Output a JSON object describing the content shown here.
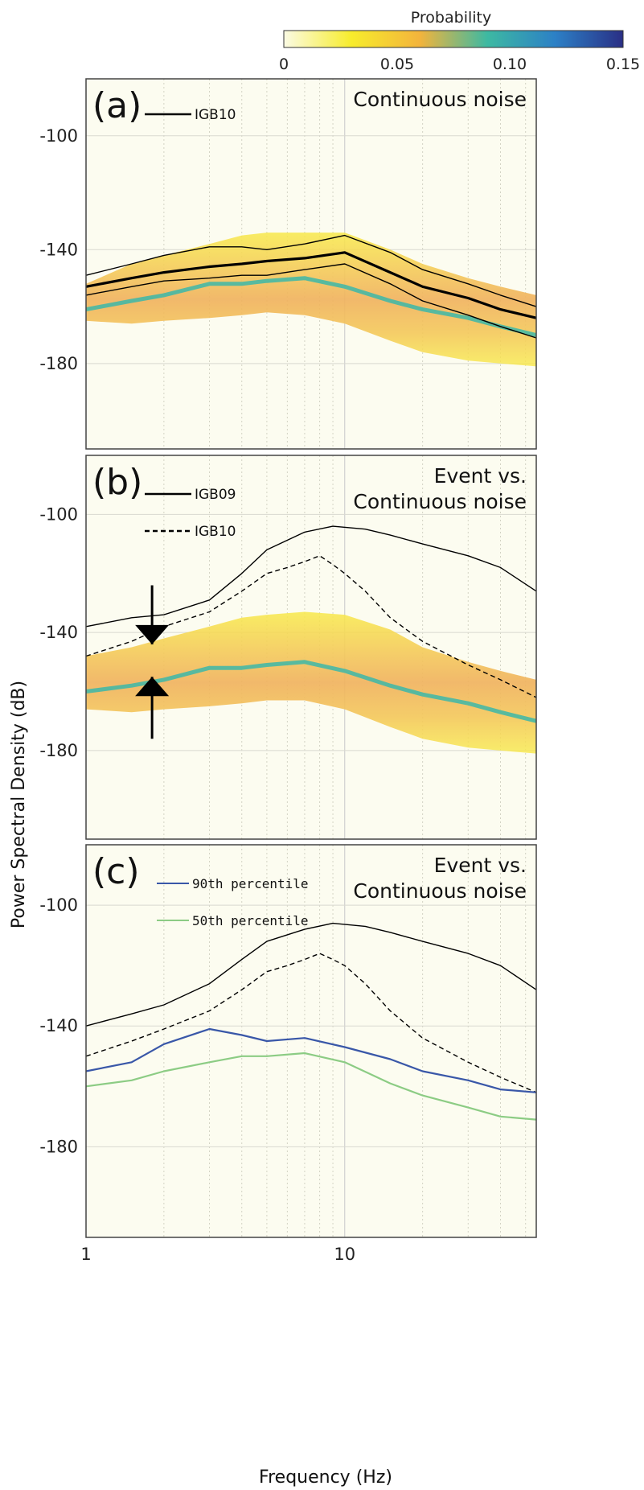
{
  "colorbar": {
    "title": "Probability",
    "ticks": [
      "0",
      "0.05",
      "0.10",
      "0.15"
    ],
    "range": [
      0,
      0.15
    ],
    "colors": [
      "#fbfbe4",
      "#f7ec2c",
      "#f3b43c",
      "#3db9a2",
      "#2c80c6",
      "#2a2f85"
    ]
  },
  "chart_data": [
    {
      "type": "line",
      "panel_label": "(a)",
      "annotation": [
        "Continuous noise"
      ],
      "xscale": "log",
      "xlim": [
        1,
        55
      ],
      "ylim": [
        -210,
        -80
      ],
      "legend": [
        {
          "name": "IGB10",
          "style": "solid",
          "color": "#000000"
        }
      ],
      "background": "probability density function of continuous noise",
      "pdf_envelope": {
        "x": [
          1,
          1.5,
          2,
          3,
          4,
          5,
          7,
          10,
          15,
          20,
          30,
          40,
          55
        ],
        "upper": [
          -152,
          -145,
          -142,
          -138,
          -135,
          -134,
          -134,
          -134,
          -140,
          -145,
          -150,
          -153,
          -156
        ],
        "lower": [
          -165,
          -166,
          -165,
          -164,
          -163,
          -162,
          -163,
          -166,
          -172,
          -176,
          -179,
          -180,
          -181
        ],
        "mode": [
          -161,
          -158,
          -156,
          -152,
          -152,
          -151,
          -150,
          -153,
          -158,
          -161,
          -164,
          -167,
          -170
        ]
      },
      "series": [
        {
          "name": "IGB10",
          "style": "solid",
          "width": "thick",
          "x": [
            1,
            1.5,
            2,
            3,
            4,
            5,
            7,
            10,
            15,
            20,
            30,
            40,
            55
          ],
          "y": [
            -153,
            -150,
            -148,
            -146,
            -145,
            -144,
            -143,
            -141,
            -148,
            -153,
            -157,
            -161,
            -164
          ]
        },
        {
          "name": "",
          "style": "solid",
          "width": "thin",
          "x": [
            1,
            1.5,
            2,
            3,
            4,
            5,
            7,
            10,
            15,
            20,
            30,
            40,
            55
          ],
          "y": [
            -149,
            -145,
            -142,
            -139,
            -139,
            -140,
            -138,
            -135,
            -141,
            -147,
            -152,
            -156,
            -160
          ]
        },
        {
          "name": "",
          "style": "solid",
          "width": "thin",
          "x": [
            1,
            1.5,
            2,
            3,
            4,
            5,
            7,
            10,
            15,
            20,
            30,
            40,
            55
          ],
          "y": [
            -156,
            -153,
            -151,
            -150,
            -149,
            -149,
            -147,
            -145,
            -152,
            -158,
            -163,
            -167,
            -171
          ]
        }
      ]
    },
    {
      "type": "line",
      "panel_label": "(b)",
      "annotation": [
        "Event vs.",
        "Continuous noise"
      ],
      "xscale": "log",
      "xlim": [
        1,
        55
      ],
      "ylim": [
        -210,
        -80
      ],
      "legend": [
        {
          "name": "IGB09",
          "style": "solid",
          "color": "#000000"
        },
        {
          "name": "IGB10",
          "style": "dashed",
          "color": "#000000"
        }
      ],
      "background": "probability density function of continuous noise",
      "pdf_envelope": {
        "x": [
          1,
          1.5,
          2,
          3,
          4,
          5,
          7,
          10,
          15,
          20,
          30,
          40,
          55
        ],
        "upper": [
          -148,
          -145,
          -142,
          -138,
          -135,
          -134,
          -133,
          -134,
          -139,
          -145,
          -150,
          -153,
          -156
        ],
        "lower": [
          -166,
          -167,
          -166,
          -165,
          -164,
          -163,
          -163,
          -166,
          -172,
          -176,
          -179,
          -180,
          -181
        ],
        "mode": [
          -160,
          -158,
          -156,
          -152,
          -152,
          -151,
          -150,
          -153,
          -158,
          -161,
          -164,
          -167,
          -170
        ]
      },
      "arrows": [
        {
          "x": 1.8,
          "from": -124,
          "to": -144
        },
        {
          "x": 1.8,
          "from": -176,
          "to": -155
        }
      ],
      "series": [
        {
          "name": "IGB09",
          "style": "solid",
          "x": [
            1,
            1.5,
            2,
            3,
            4,
            5,
            7,
            9,
            12,
            15,
            20,
            30,
            40,
            55
          ],
          "y": [
            -138,
            -135,
            -134,
            -129,
            -120,
            -112,
            -106,
            -104,
            -105,
            -107,
            -110,
            -114,
            -118,
            -126
          ]
        },
        {
          "name": "IGB10",
          "style": "dashed",
          "x": [
            1,
            1.5,
            2,
            3,
            4,
            5,
            6,
            7,
            8,
            9,
            10,
            12,
            15,
            20,
            30,
            40,
            55
          ],
          "y": [
            -148,
            -143,
            -138,
            -133,
            -126,
            -120,
            -118,
            -116,
            -114,
            -117,
            -120,
            -126,
            -135,
            -143,
            -151,
            -156,
            -162
          ]
        }
      ]
    },
    {
      "type": "line",
      "panel_label": "(c)",
      "annotation": [
        "Event vs.",
        "Continuous noise"
      ],
      "xscale": "log",
      "xlim": [
        1,
        55
      ],
      "ylim": [
        -210,
        -80
      ],
      "xlabel": "Frequency (Hz)",
      "ylabel": "Power Spectral Density (dB)",
      "xticks": [
        "1",
        "10"
      ],
      "yticks": [
        "-100",
        "-140",
        "-180"
      ],
      "legend": [
        {
          "name": "90th percentile",
          "style": "solid",
          "color": "#3957a8"
        },
        {
          "name": "50th percentile",
          "style": "solid",
          "color": "#8ccc84"
        }
      ],
      "series": [
        {
          "name": "",
          "style": "solid",
          "color": "#000000",
          "x": [
            1,
            1.5,
            2,
            3,
            4,
            5,
            7,
            9,
            12,
            15,
            20,
            30,
            40,
            55
          ],
          "y": [
            -140,
            -136,
            -133,
            -126,
            -118,
            -112,
            -108,
            -106,
            -107,
            -109,
            -112,
            -116,
            -120,
            -128
          ]
        },
        {
          "name": "",
          "style": "dashed",
          "color": "#000000",
          "x": [
            1,
            1.5,
            2,
            3,
            4,
            5,
            6,
            7,
            8,
            9,
            10,
            12,
            15,
            20,
            30,
            40,
            55
          ],
          "y": [
            -150,
            -145,
            -141,
            -135,
            -128,
            -122,
            -120,
            -118,
            -116,
            -118,
            -120,
            -126,
            -135,
            -144,
            -152,
            -157,
            -162
          ]
        },
        {
          "name": "90th percentile",
          "style": "solid",
          "color": "#3957a8",
          "x": [
            1,
            1.5,
            2,
            3,
            4,
            5,
            7,
            10,
            15,
            20,
            30,
            40,
            55
          ],
          "y": [
            -155,
            -152,
            -146,
            -141,
            -143,
            -145,
            -144,
            -147,
            -151,
            -155,
            -158,
            -161,
            -162
          ]
        },
        {
          "name": "50th percentile",
          "style": "solid",
          "color": "#8ccc84",
          "x": [
            1,
            1.5,
            2,
            3,
            4,
            5,
            7,
            10,
            15,
            20,
            30,
            40,
            55
          ],
          "y": [
            -160,
            -158,
            -155,
            -152,
            -150,
            -150,
            -149,
            -152,
            -159,
            -163,
            -167,
            -170,
            -171
          ]
        }
      ]
    }
  ]
}
